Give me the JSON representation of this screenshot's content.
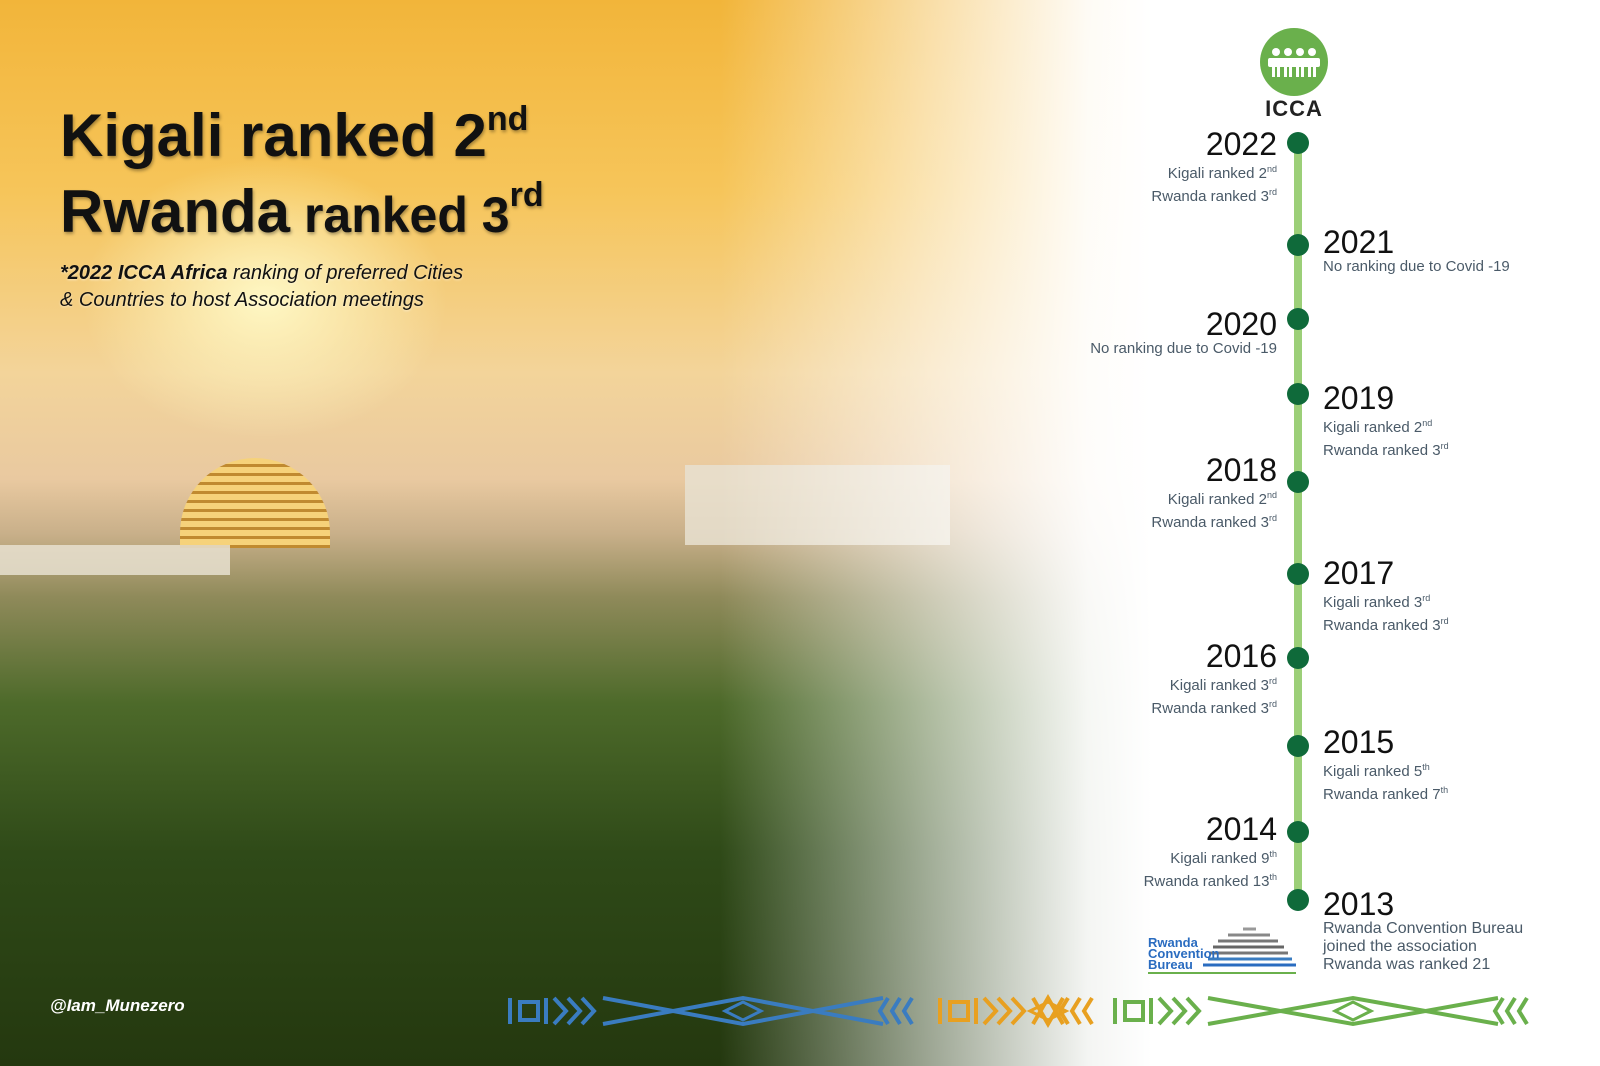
{
  "headline": {
    "line1": {
      "text": "Kigali ranked 2",
      "sup": "nd"
    },
    "line2": {
      "a": "Rwanda",
      "b": " ranked 3",
      "sup": "rd"
    }
  },
  "subtitle": {
    "bold": "*2022 ICCA Africa",
    "rest": " ranking of  preferred Cities",
    "line2": "& Countries to host Association meetings"
  },
  "handle": "@Iam_Munezero",
  "logo": {
    "name": "ICCA",
    "color": "#6ab04c"
  },
  "timeline": [
    {
      "year": "2022",
      "lines": [
        {
          "text": "Kigali  ranked 2",
          "sup": "nd"
        },
        {
          "text": "Rwanda  ranked 3",
          "sup": "rd"
        }
      ]
    },
    {
      "year": "2021",
      "lines": [
        {
          "text": "No ranking due to Covid -19",
          "sup": ""
        }
      ]
    },
    {
      "year": "2020",
      "lines": [
        {
          "text": "No ranking due to Covid -19",
          "sup": ""
        }
      ]
    },
    {
      "year": "2019",
      "lines": [
        {
          "text": "Kigali ranked 2",
          "sup": "nd"
        },
        {
          "text": "Rwanda  ranked 3",
          "sup": "rd"
        }
      ]
    },
    {
      "year": "2018",
      "lines": [
        {
          "text": "Kigali ranked 2",
          "sup": "nd"
        },
        {
          "text": "Rwanda ranked 3",
          "sup": "rd"
        }
      ]
    },
    {
      "year": "2017",
      "lines": [
        {
          "text": "Kigali ranked 3",
          "sup": "rd"
        },
        {
          "text": "Rwanda ranked 3",
          "sup": "rd"
        }
      ]
    },
    {
      "year": "2016",
      "lines": [
        {
          "text": "Kigali ranked 3",
          "sup": "rd"
        },
        {
          "text": "Rwanda  ranked 3",
          "sup": "rd"
        }
      ]
    },
    {
      "year": "2015",
      "lines": [
        {
          "text": "Kigali ranked 5",
          "sup": "th"
        },
        {
          "text": "Rwanda ranked 7",
          "sup": "th"
        }
      ]
    },
    {
      "year": "2014",
      "lines": [
        {
          "text": "Kigali ranked 9",
          "sup": "th"
        },
        {
          "text": "Rwanda ranked 13",
          "sup": "th"
        }
      ]
    },
    {
      "year": "2013",
      "lines": [
        {
          "text": "Rwanda Convention Bureau",
          "sup": ""
        },
        {
          "text": "joined the association",
          "sup": ""
        },
        {
          "text": "Rwanda was ranked 21",
          "sup": ""
        }
      ]
    }
  ],
  "rcb_logo": {
    "line1": "Rwanda",
    "line2": "Convention",
    "line3": "Bureau"
  },
  "colors": {
    "dot": "#0f6a3a",
    "line": "#9ccf78",
    "pattern_blue": "#3a7cc0",
    "pattern_orange": "#e8a020",
    "pattern_green": "#6ab04c"
  }
}
